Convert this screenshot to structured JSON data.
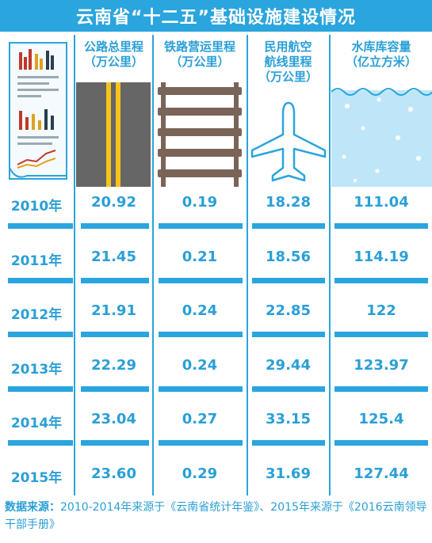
{
  "title": "云南省“十二五”基础设施建设情况",
  "chart_data": {
    "type": "table",
    "columns": [
      {
        "key": "highway",
        "label_lines": [
          "公路总里程",
          "（万公里）"
        ]
      },
      {
        "key": "railway",
        "label_lines": [
          "铁路营运里程",
          "（万公里）"
        ]
      },
      {
        "key": "aviation",
        "label_lines": [
          "民用航空",
          "航线里程",
          "（万公里）"
        ]
      },
      {
        "key": "reservoir",
        "label_lines": [
          "水库库容量",
          "（亿立方米）"
        ]
      }
    ],
    "rows": [
      {
        "year": "2010年",
        "values": [
          "20.92",
          "0.19",
          "18.28",
          "111.04"
        ]
      },
      {
        "year": "2011年",
        "values": [
          "21.45",
          "0.21",
          "18.56",
          "114.19"
        ]
      },
      {
        "year": "2012年",
        "values": [
          "21.91",
          "0.24",
          "22.85",
          "122"
        ]
      },
      {
        "year": "2013年",
        "values": [
          "22.29",
          "0.24",
          "29.44",
          "123.97"
        ]
      },
      {
        "year": "2014年",
        "values": [
          "23.04",
          "0.27",
          "33.15",
          "125.4"
        ]
      },
      {
        "year": "2015年",
        "values": [
          "23.60",
          "0.29",
          "31.69",
          "127.44"
        ]
      }
    ]
  },
  "source": {
    "label": "数据来源：",
    "text": "2010-2014年来源于《云南省统计年鉴》、2015年来源于《2016云南领导干部手册》"
  },
  "icons": {
    "document": "report-document-icon",
    "highway": "road-icon",
    "railway": "railway-track-icon",
    "aviation": "airplane-icon",
    "reservoir": "water-icon"
  },
  "colors": {
    "accent": "#2aa5dd",
    "road": "#666666",
    "road_line": "#f6c31a",
    "rail": "#7a6458",
    "water": "#bfe6f8"
  }
}
